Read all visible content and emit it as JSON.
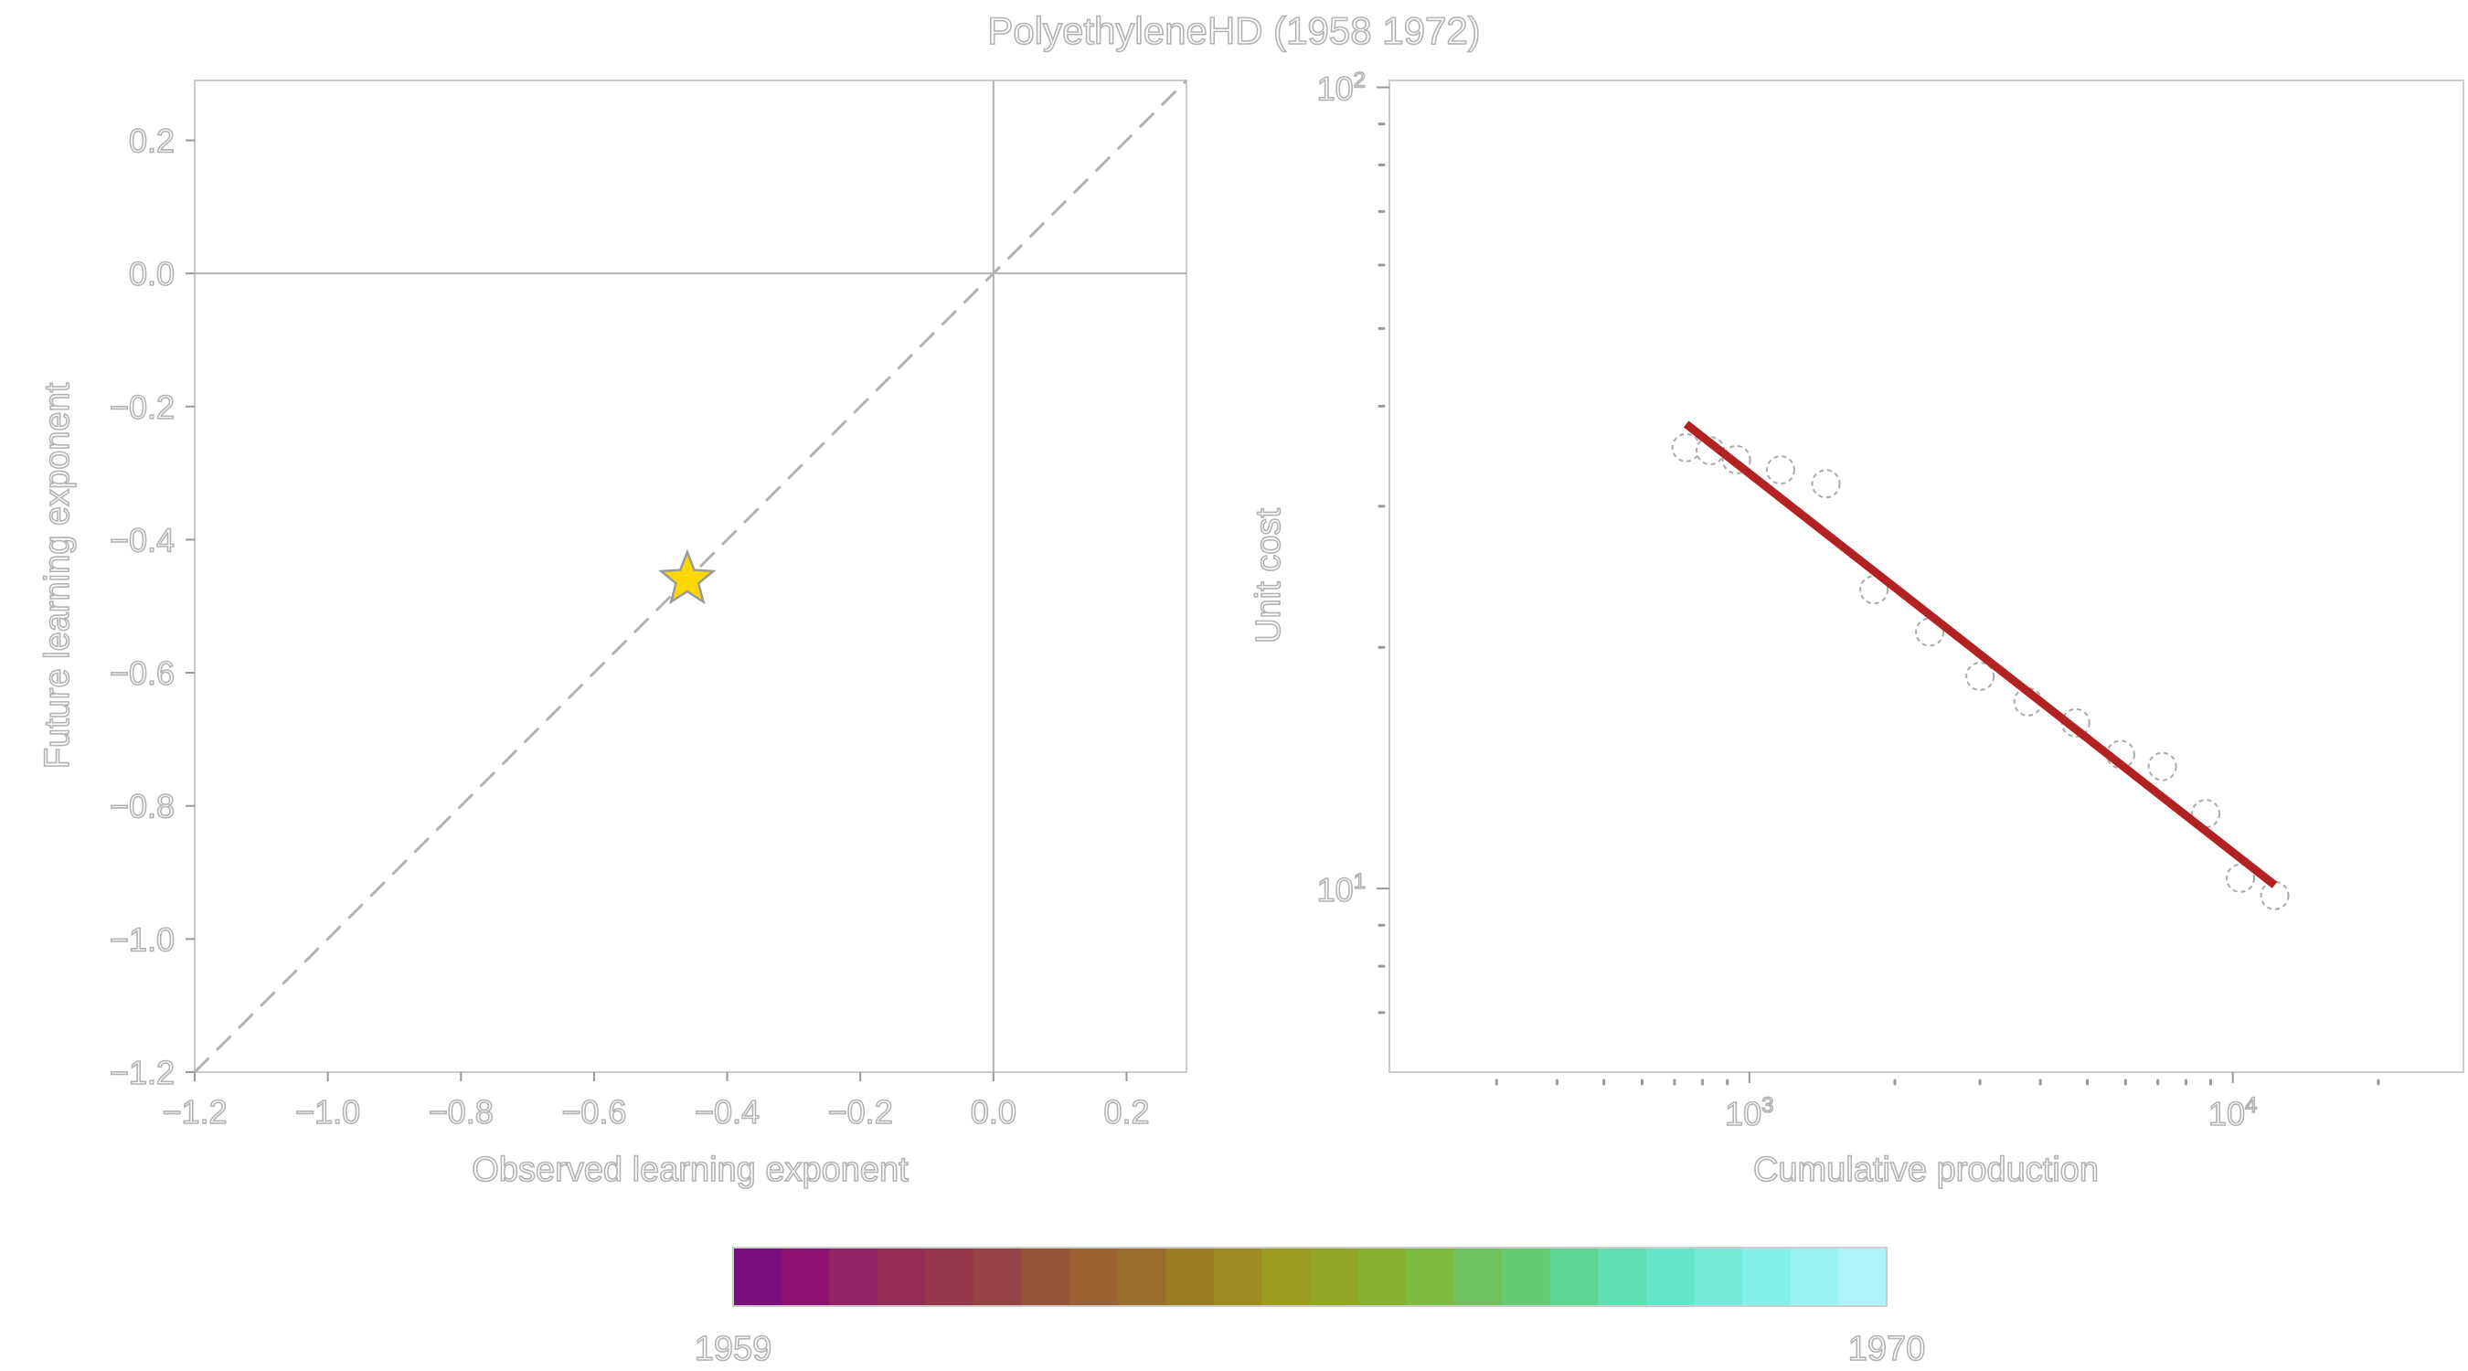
{
  "title": "PolyethyleneHD (1958 1972)",
  "colors": {
    "fit_line": "#b22222",
    "star_fill": "#ffd700",
    "star_stroke": "#999999",
    "ref_line": "#b3b3b3",
    "zero_line": "#b3b3b3"
  },
  "chart_data": [
    {
      "type": "scatter",
      "name": "exponent-comparison",
      "xlabel": "Observed learning exponent",
      "ylabel": "Future learning exponent",
      "xlim": [
        -1.2,
        0.29
      ],
      "ylim": [
        -1.2,
        0.29
      ],
      "xticks": [
        -1.2,
        -1.0,
        -0.8,
        -0.6,
        -0.4,
        -0.2,
        0.0,
        0.2
      ],
      "xtick_labels": [
        "−1.2",
        "−1.0",
        "−0.8",
        "−0.6",
        "−0.4",
        "−0.2",
        "0.0",
        "0.2"
      ],
      "yticks": [
        -1.2,
        -1.0,
        -0.8,
        -0.6,
        -0.4,
        -0.2,
        0.0,
        0.2
      ],
      "ytick_labels": [
        "−1.2",
        "−1.0",
        "−0.8",
        "−0.6",
        "−0.4",
        "−0.2",
        "0.0",
        "0.2"
      ],
      "reference": "y = x (dashed)",
      "points": [
        {
          "x": -0.46,
          "y": -0.46,
          "marker": "star"
        }
      ]
    },
    {
      "type": "scatter",
      "name": "experience-curve",
      "xscale": "log",
      "yscale": "log",
      "xlabel": "Cumulative production",
      "ylabel": "Unit cost",
      "xlim": [
        180,
        30000
      ],
      "ylim": [
        5.9,
        102
      ],
      "xtick_major": [
        {
          "value": 1000,
          "base": "10",
          "exp": "3"
        },
        {
          "value": 10000,
          "base": "10",
          "exp": "4"
        }
      ],
      "ytick_major": [
        {
          "value": 10,
          "base": "10",
          "exp": "1"
        },
        {
          "value": 100,
          "base": "10",
          "exp": "2"
        }
      ],
      "xtick_minor": [
        300,
        400,
        500,
        600,
        700,
        800,
        900,
        2000,
        3000,
        4000,
        5000,
        6000,
        7000,
        8000,
        9000,
        20000
      ],
      "ytick_minor": [
        7,
        8,
        9,
        20,
        30,
        40,
        50,
        60,
        70,
        80,
        90
      ],
      "x": [
        740,
        830,
        940,
        1160,
        1440,
        1810,
        2360,
        3000,
        3770,
        4730,
        5860,
        7150,
        8790,
        10370,
        12210
      ],
      "y": [
        35.5,
        35.2,
        34.3,
        33.3,
        32.0,
        23.6,
        20.9,
        18.4,
        17.1,
        16.1,
        14.7,
        14.2,
        12.4,
        10.3,
        9.8
      ],
      "fit": {
        "x": [
          740,
          12210
        ],
        "y": [
          38.0,
          10.1
        ]
      }
    }
  ],
  "colorbar": {
    "min_label": "1959",
    "max_label": "1970",
    "stops": [
      "#7b0f7f",
      "#8e1370",
      "#922463",
      "#962d57",
      "#96374e",
      "#974345",
      "#98533b",
      "#9a6232",
      "#9a6d2a",
      "#9b7d24",
      "#9c8c1f",
      "#9a9d1f",
      "#93a625",
      "#87b02e",
      "#7cba40",
      "#70c35c",
      "#66cc74",
      "#5dd693",
      "#5ee0b2",
      "#64e6c9",
      "#72ebda",
      "#84f0e8",
      "#99f3f1",
      "#acf4f7"
    ]
  }
}
